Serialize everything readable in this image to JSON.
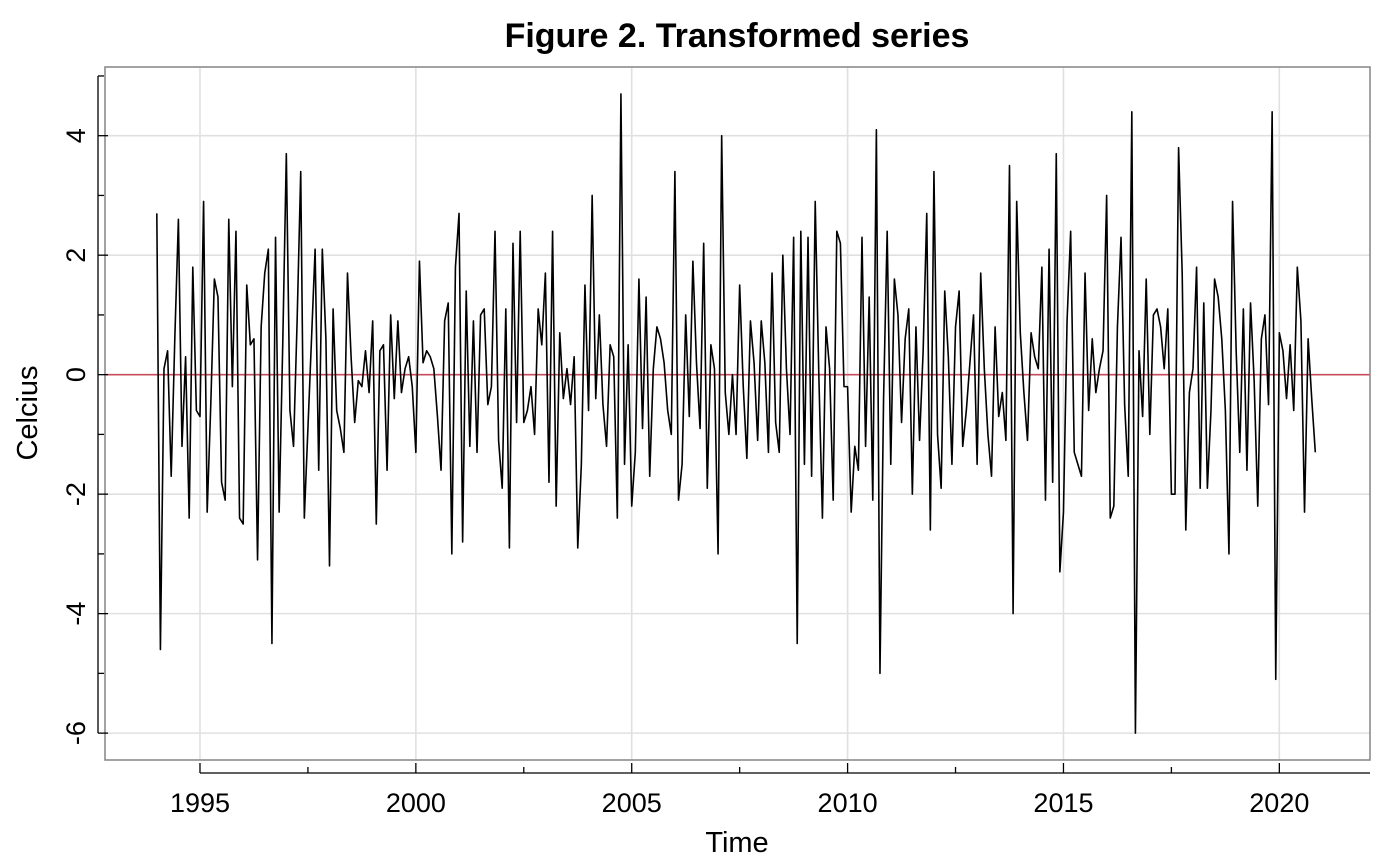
{
  "chart_data": {
    "type": "line",
    "title": "Figure 2. Transformed series",
    "xlabel": "Time",
    "ylabel": "Celcius",
    "xlim": [
      1992.8,
      2022.1
    ],
    "ylim": [
      -6.45,
      5.15
    ],
    "x_major_ticks": [
      1995,
      2000,
      2005,
      2010,
      2015,
      2020
    ],
    "x_minor_ticks": [
      1997.5,
      2002.5,
      2007.5,
      2012.5,
      2017.5
    ],
    "y_major_ticks": [
      -6,
      -4,
      -2,
      0,
      2,
      4
    ],
    "y_minor_ticks": [
      -5,
      -3,
      -1,
      1,
      3,
      5
    ],
    "grid": true,
    "reference_line": {
      "y": 0,
      "color": "#c84c5c"
    },
    "series_color": "#000000",
    "series": [
      {
        "start": 1994.0,
        "frequency": 12,
        "values": [
          2.7,
          -4.6,
          0.1,
          0.4,
          -1.7,
          0.6,
          2.6,
          -1.2,
          0.3,
          -2.4,
          1.8,
          -0.6,
          -0.7,
          2.9,
          -2.3,
          -0.5,
          1.6,
          1.3,
          -1.8,
          -2.1,
          2.6,
          -0.2,
          2.4,
          -2.4,
          -2.5,
          1.5,
          0.5,
          0.6,
          -3.1,
          0.8,
          1.7,
          2.1,
          -4.5,
          2.3,
          -2.3,
          0.5,
          3.7,
          -0.6,
          -1.2,
          0.9,
          3.4,
          -2.4,
          -0.9,
          0.6,
          2.1,
          -1.6,
          2.1,
          0.6,
          -3.2,
          1.1,
          -0.6,
          -0.9,
          -1.3,
          1.7,
          0.3,
          -0.8,
          -0.1,
          -0.2,
          0.4,
          -0.3,
          0.9,
          -2.5,
          0.4,
          0.5,
          -1.6,
          1.0,
          -0.4,
          0.9,
          -0.3,
          0.1,
          0.3,
          -0.2,
          -1.3,
          1.9,
          0.2,
          0.4,
          0.3,
          0.1,
          -0.7,
          -1.6,
          0.9,
          1.2,
          -3.0,
          1.8,
          2.7,
          -2.8,
          1.4,
          -1.2,
          0.9,
          -1.3,
          1.0,
          1.1,
          -0.5,
          -0.2,
          2.4,
          -1.1,
          -1.9,
          1.1,
          -2.9,
          2.2,
          -0.8,
          2.4,
          -0.8,
          -0.6,
          -0.2,
          -1.0,
          1.1,
          0.5,
          1.7,
          -1.8,
          2.4,
          -2.2,
          0.7,
          -0.4,
          0.1,
          -0.5,
          0.3,
          -2.9,
          -1.5,
          1.5,
          -0.6,
          3.0,
          -0.4,
          1.0,
          -0.5,
          -1.2,
          0.5,
          0.3,
          -2.4,
          4.7,
          -1.5,
          0.5,
          -2.2,
          -1.3,
          1.6,
          -0.9,
          1.3,
          -1.7,
          0.1,
          0.8,
          0.6,
          0.2,
          -0.6,
          -1.0,
          3.4,
          -2.1,
          -1.5,
          1.0,
          -0.7,
          1.9,
          0.2,
          -0.9,
          2.2,
          -1.9,
          0.5,
          0.1,
          -3.0,
          4.0,
          -0.3,
          -1.0,
          0.0,
          -1.0,
          1.5,
          -0.2,
          -1.4,
          0.9,
          0.2,
          -1.1,
          0.9,
          0.2,
          -1.3,
          1.7,
          -0.8,
          -1.3,
          2.0,
          0.1,
          -1.0,
          2.3,
          -4.5,
          2.4,
          -1.5,
          2.3,
          -1.7,
          2.9,
          0.0,
          -2.4,
          0.8,
          0.1,
          -2.1,
          2.4,
          2.2,
          -0.2,
          -0.2,
          -2.3,
          -1.2,
          -1.6,
          2.3,
          -1.2,
          1.3,
          -2.1,
          4.1,
          -5.0,
          -0.4,
          2.4,
          -1.5,
          1.6,
          1.0,
          -0.8,
          0.6,
          1.1,
          -2.0,
          0.8,
          -1.1,
          0.4,
          2.7,
          -2.6,
          3.4,
          -1.0,
          -1.9,
          1.4,
          0.3,
          -1.5,
          0.8,
          1.4,
          -1.2,
          -0.6,
          0.2,
          1.0,
          -1.5,
          1.7,
          0.1,
          -1.0,
          -1.7,
          0.8,
          -0.7,
          -0.3,
          -1.1,
          3.5,
          -4.0,
          2.9,
          0.7,
          -0.3,
          -1.1,
          0.7,
          0.3,
          0.1,
          1.8,
          -2.1,
          2.1,
          -1.8,
          3.7,
          -3.3,
          -2.3,
          0.9,
          2.4,
          -1.3,
          -1.5,
          -1.7,
          1.7,
          -0.6,
          0.6,
          -0.3,
          0.1,
          0.4,
          3.0,
          -2.4,
          -2.2,
          0.8,
          2.3,
          -0.5,
          -1.7,
          4.4,
          -6.0,
          0.4,
          -0.7,
          1.6,
          -1.0,
          1.0,
          1.1,
          0.8,
          0.1,
          1.1,
          -2.0,
          -2.0,
          3.8,
          1.7,
          -2.6,
          -0.3,
          0.1,
          1.8,
          -1.9,
          1.2,
          -1.9,
          -0.6,
          1.6,
          1.3,
          0.6,
          -0.6,
          -3.0,
          2.9,
          0.4,
          -1.3,
          1.1,
          -1.6,
          1.2,
          -0.1,
          -2.2,
          0.6,
          1.0,
          -0.5,
          4.4,
          -5.1,
          0.7,
          0.4,
          -0.4,
          0.5,
          -0.6,
          1.8,
          0.9,
          -2.3,
          0.6,
          -0.4,
          -1.3
        ]
      }
    ]
  }
}
